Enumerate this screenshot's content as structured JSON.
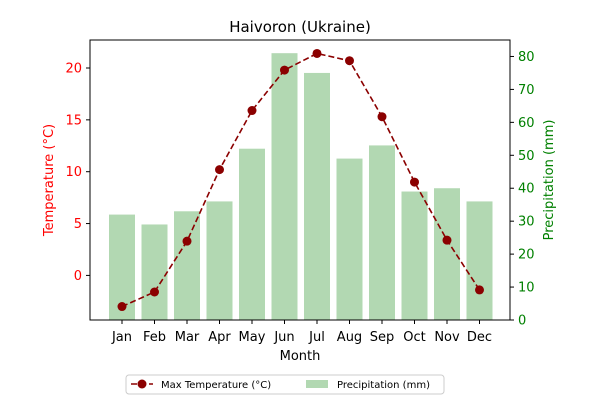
{
  "chart_data": {
    "type": "bar+line",
    "title": "Haivoron (Ukraine)",
    "xlabel": "Month",
    "categories": [
      "Jan",
      "Feb",
      "Mar",
      "Apr",
      "May",
      "Jun",
      "Jul",
      "Aug",
      "Sep",
      "Oct",
      "Nov",
      "Dec"
    ],
    "left_axis": {
      "label": "Temperature (°C)",
      "color": "#ff0000",
      "ylim": [
        -4.3,
        22.7
      ],
      "ticks": [
        0,
        5,
        10,
        15,
        20
      ]
    },
    "right_axis": {
      "label": "Precipitation (mm)",
      "color": "#008000",
      "ylim": [
        0,
        85
      ],
      "ticks": [
        0,
        10,
        20,
        30,
        40,
        50,
        60,
        70,
        80
      ]
    },
    "series": [
      {
        "name": "Max Temperature (°C)",
        "type": "line",
        "axis": "left",
        "color": "#8b0000",
        "style": "dashed-with-markers",
        "values": [
          -3.0,
          -1.6,
          3.3,
          10.2,
          15.9,
          19.8,
          21.4,
          20.7,
          15.3,
          9.0,
          3.4,
          -1.4
        ]
      },
      {
        "name": "Precipitation (mm)",
        "type": "bar",
        "axis": "right",
        "color": "#b2d8b2",
        "values": [
          32,
          29,
          33,
          36,
          52,
          81,
          75,
          49,
          53,
          39,
          40,
          36
        ]
      }
    ],
    "legend": {
      "placement": "bottom-center",
      "columns": 2
    },
    "grid": false
  }
}
